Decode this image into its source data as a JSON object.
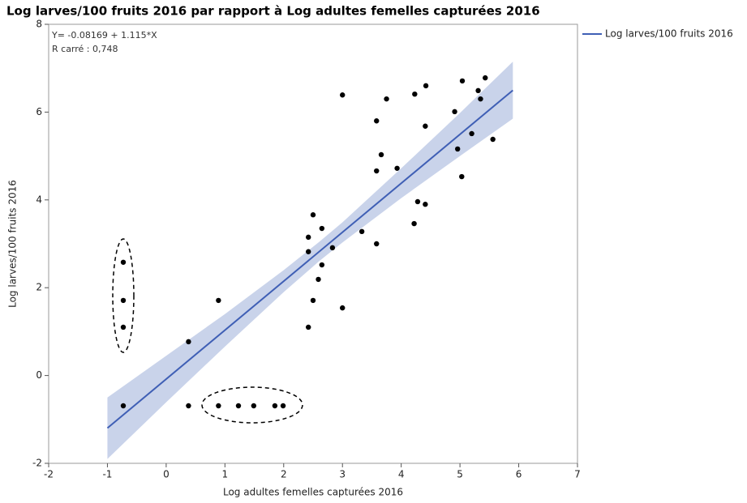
{
  "chart_data": {
    "type": "scatter",
    "title": "Log larves/100 fruits 2016 par rapport à Log adultes femelles capturées 2016",
    "x_label": "Log adultes femelles capturées 2016",
    "y_label": "Log larves/100 fruits 2016",
    "annotations": [
      "Y= -0.08169 + 1.115*X",
      "R carré : 0,748"
    ],
    "color": "#000000",
    "x": [
      -0.73,
      -0.73,
      -0.73,
      -0.73,
      0.38,
      0.38,
      0.89,
      0.89,
      1.23,
      1.49,
      1.85,
      1.99,
      2.42,
      2.42,
      2.42,
      2.5,
      2.5,
      2.59,
      2.65,
      2.65,
      2.83,
      3.0,
      3.0,
      3.33,
      3.58,
      3.58,
      3.58,
      3.66,
      3.75,
      3.93,
      4.22,
      4.23,
      4.28,
      4.41,
      4.41,
      4.42,
      4.91,
      4.96,
      5.03,
      5.04,
      5.2,
      5.31,
      5.35,
      5.43,
      5.56
    ],
    "values": [
      -0.69,
      1.1,
      1.71,
      2.58,
      0.77,
      -0.69,
      1.71,
      -0.69,
      -0.69,
      -0.69,
      -0.69,
      -0.69,
      1.1,
      2.82,
      3.15,
      3.66,
      1.71,
      2.19,
      2.52,
      3.35,
      2.91,
      1.54,
      6.39,
      3.28,
      3.0,
      4.66,
      5.8,
      5.03,
      6.3,
      4.72,
      3.46,
      6.41,
      3.96,
      3.9,
      5.68,
      6.6,
      6.01,
      5.16,
      4.53,
      6.71,
      5.51,
      6.49,
      6.3,
      6.78,
      5.38
    ],
    "fit": {
      "name": "Log larves/100 fruits 2016",
      "color": "#3f5fb5",
      "x": [
        -1,
        5.9
      ],
      "values": [
        -1.197,
        6.497
      ]
    },
    "band": {
      "color": "#c9d3ea",
      "x": [
        -1,
        0,
        1,
        2,
        2.6,
        3,
        4,
        5,
        5.9
      ],
      "upper": [
        -0.5,
        0.45,
        1.4,
        2.4,
        3.04,
        3.49,
        4.72,
        5.98,
        7.15
      ],
      "lower": [
        -1.9,
        -0.61,
        0.66,
        1.9,
        2.6,
        3.03,
        4.04,
        5.0,
        5.85
      ]
    },
    "xlim": [
      -2,
      7
    ],
    "xticks": [
      -2,
      -1,
      0,
      1,
      2,
      3,
      4,
      5,
      6,
      7
    ],
    "ylim": [
      -2,
      8
    ],
    "yticks": [
      -2,
      0,
      2,
      4,
      6,
      8
    ],
    "legend": "outside-right"
  }
}
